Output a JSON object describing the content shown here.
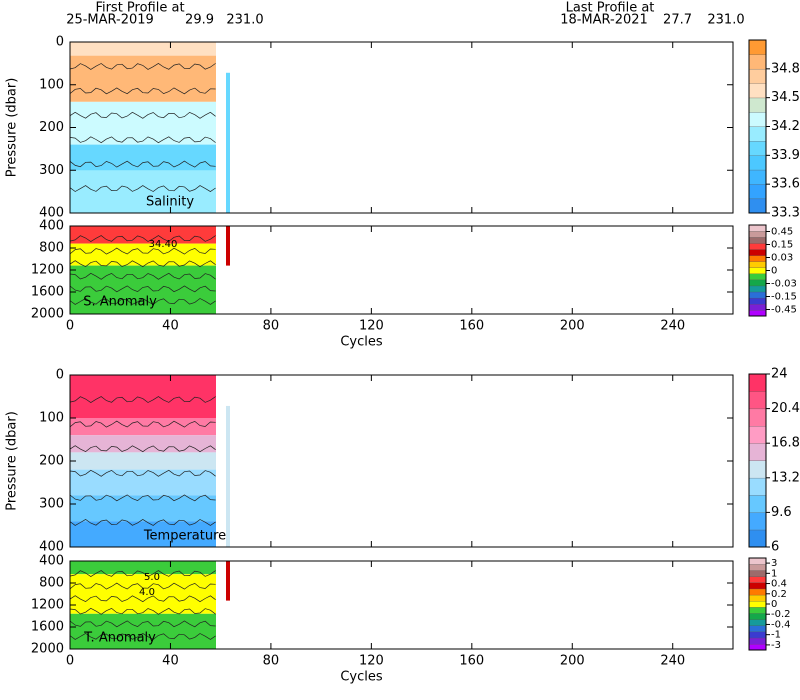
{
  "header": {
    "first_label": "First Profile at",
    "first_date": "25-MAR-2019",
    "first_lat": "29.9",
    "first_lon": "231.0",
    "last_label": "Last Profile at",
    "last_date": "18-MAR-2021",
    "last_lat": "27.7",
    "last_lon": "231.0"
  },
  "chart_data": [
    {
      "type": "heatmap",
      "title": "Salinity",
      "ylabel": "Pressure (dbar)",
      "xlim": [
        0,
        264
      ],
      "xticks": [
        0,
        40,
        80,
        120,
        160,
        200,
        240
      ],
      "ylim": [
        0,
        400
      ],
      "yticks": [
        0,
        100,
        200,
        300,
        400
      ],
      "y_inverted": true,
      "colorbar": {
        "clim": [
          33.3,
          35.1
        ],
        "ticks": [
          33.3,
          33.6,
          33.9,
          34.2,
          34.5,
          34.8
        ],
        "colors": [
          "#2f8ff0",
          "#33a3ff",
          "#3fb6ff",
          "#4cc8ff",
          "#66d8ff",
          "#99ecff",
          "#ccfbff",
          "#cfe8cf",
          "#ffe0c2",
          "#ffcd9e",
          "#ffb877",
          "#ff9a33"
        ]
      }
    },
    {
      "type": "heatmap",
      "title": "S. Anomaly",
      "xlabel": "Cycles",
      "xlim": [
        0,
        264
      ],
      "xticks": [
        0,
        40,
        80,
        120,
        160,
        200,
        240
      ],
      "ylim": [
        400,
        2000
      ],
      "yticks": [
        400,
        800,
        1200,
        1600,
        2000
      ],
      "y_inverted": true,
      "annotations": [
        "34.40"
      ],
      "colorbar": {
        "ticks": [
          0.45,
          0.15,
          0.03,
          0,
          -0.03,
          -0.15,
          -0.45
        ],
        "colors": [
          "#b000ff",
          "#7a1fd6",
          "#3b3bd0",
          "#2a6fd8",
          "#159b9b",
          "#14a84a",
          "#3bcc3b",
          "#ffff00",
          "#ffcc00",
          "#ff7a00",
          "#cc0000",
          "#ff3b3b",
          "#9c6b6b",
          "#c99a9a",
          "#ecc5cc"
        ]
      }
    },
    {
      "type": "heatmap",
      "title": "Temperature",
      "ylabel": "Pressure (dbar)",
      "xlim": [
        0,
        264
      ],
      "xticks": [
        0,
        40,
        80,
        120,
        160,
        200,
        240
      ],
      "ylim": [
        0,
        400
      ],
      "yticks": [
        0,
        100,
        200,
        300,
        400
      ],
      "y_inverted": true,
      "colorbar": {
        "clim": [
          6,
          24
        ],
        "ticks": [
          6,
          9.6,
          13.2,
          16.8,
          20.4,
          24
        ],
        "colors": [
          "#2f8ff0",
          "#44aaff",
          "#66c8ff",
          "#99dcff",
          "#cce6f2",
          "#e6b4d6",
          "#ff9cc4",
          "#ff7aa4",
          "#ff5584",
          "#ff3366"
        ]
      }
    },
    {
      "type": "heatmap",
      "title": "T. Anomaly",
      "xlabel": "Cycles",
      "xlim": [
        0,
        264
      ],
      "xticks": [
        0,
        40,
        80,
        120,
        160,
        200,
        240
      ],
      "ylim": [
        400,
        2000
      ],
      "yticks": [
        400,
        800,
        1200,
        1600,
        2000
      ],
      "y_inverted": true,
      "annotations": [
        "5.0",
        "4.0"
      ],
      "colorbar": {
        "ticks": [
          3,
          1,
          0.4,
          0.2,
          0,
          -0.2,
          -0.4,
          -1,
          -3
        ],
        "colors": [
          "#b000ff",
          "#7a1fd6",
          "#3b3bd0",
          "#2a6fd8",
          "#159b9b",
          "#14a84a",
          "#3bcc3b",
          "#ffff00",
          "#ffcc00",
          "#ff7a00",
          "#cc0000",
          "#ff3b3b",
          "#9c6b6b",
          "#c99a9a",
          "#ecc5cc"
        ]
      }
    }
  ]
}
